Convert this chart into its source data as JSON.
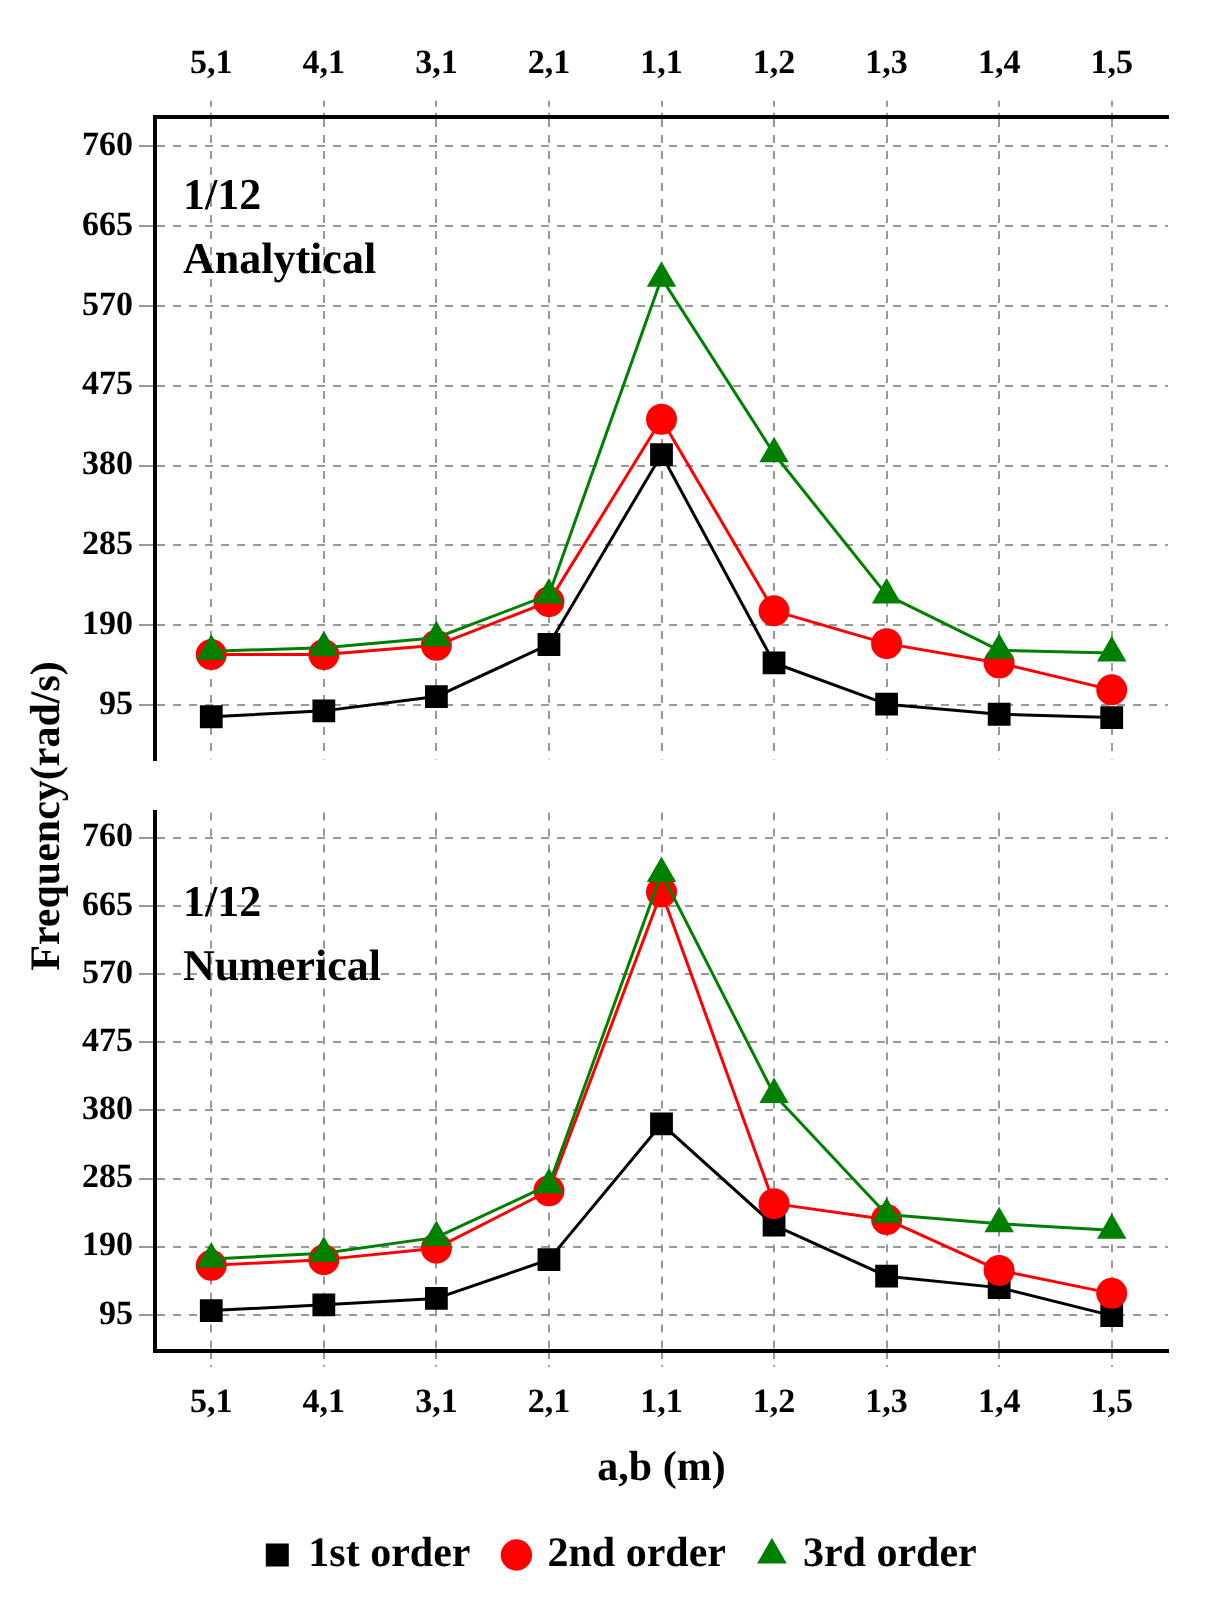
{
  "chart_data": [
    {
      "type": "line",
      "ylabel": "Frequency(rad/s)",
      "annotations": [
        "1/12",
        "Analytical"
      ],
      "categories": [
        "5,1",
        "4,1",
        "3,1",
        "2,1",
        "1,1",
        "1,2",
        "1,3",
        "1,4",
        "1,5"
      ],
      "ylim": [
        30,
        795
      ],
      "yticks": [
        95,
        190,
        285,
        380,
        475,
        570,
        665,
        760
      ],
      "grid": true,
      "legend": false,
      "series": [
        {
          "color": "#000000",
          "marker": "square",
          "values": [
            81,
            88,
            105,
            167,
            393,
            145,
            96,
            84,
            80
          ]
        },
        {
          "color": "#ff0000",
          "marker": "circle",
          "values": [
            155,
            155,
            166,
            218,
            435,
            207,
            168,
            145,
            113
          ]
        },
        {
          "color": "#008000",
          "marker": "triangle",
          "values": [
            159,
            163,
            175,
            226,
            603,
            394,
            226,
            160,
            157
          ]
        }
      ]
    },
    {
      "type": "line",
      "xlabel": "a,b (m)",
      "annotations": [
        "1/12",
        "Numerical"
      ],
      "categories": [
        "5,1",
        "4,1",
        "3,1",
        "2,1",
        "1,1",
        "1,2",
        "1,3",
        "1,4",
        "1,5"
      ],
      "ylim": [
        45,
        795
      ],
      "yticks": [
        95,
        190,
        285,
        380,
        475,
        570,
        665,
        760
      ],
      "grid": true,
      "legend": "bottom",
      "series": [
        {
          "name": "1st order",
          "color": "#000000",
          "marker": "square",
          "values": [
            101,
            109,
            118,
            172,
            361,
            220,
            149,
            133,
            94
          ]
        },
        {
          "name": "2nd order",
          "color": "#ff0000",
          "marker": "circle",
          "values": [
            164,
            172,
            188,
            268,
            684,
            250,
            228,
            157,
            125
          ]
        },
        {
          "name": "3rd order",
          "color": "#008000",
          "marker": "triangle",
          "values": [
            173,
            181,
            203,
            276,
            710,
            402,
            235,
            222,
            213
          ]
        }
      ]
    }
  ]
}
